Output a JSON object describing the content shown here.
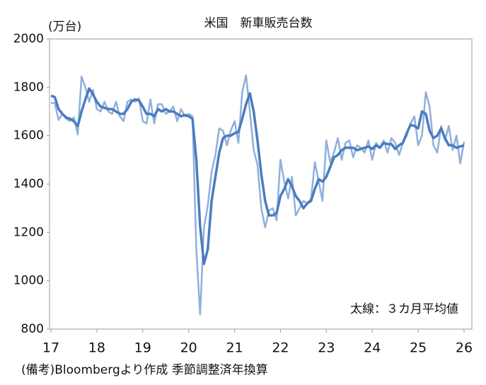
{
  "chart_data": {
    "type": "line",
    "title": "米国　新車販売台数",
    "y_label": "(万台)",
    "annotation": "太線：３カ月平均値",
    "note": "(備考)Bloombergより作成 季節調整済年換算",
    "categories": [
      "17",
      null,
      null,
      null,
      null,
      null,
      null,
      null,
      null,
      null,
      null,
      null,
      "18",
      null,
      null,
      null,
      null,
      null,
      null,
      null,
      null,
      null,
      null,
      null,
      "19",
      null,
      null,
      null,
      null,
      null,
      null,
      null,
      null,
      null,
      null,
      null,
      "20",
      null,
      null,
      null,
      null,
      null,
      null,
      null,
      null,
      null,
      null,
      null,
      "21",
      null,
      null,
      null,
      null,
      null,
      null,
      null,
      null,
      null,
      null,
      null,
      "22",
      null,
      null,
      null,
      null,
      null,
      null,
      null,
      null,
      null,
      null,
      null,
      "23",
      null,
      null,
      null,
      null,
      null,
      null,
      null,
      null,
      null,
      null,
      null,
      "24",
      null,
      null,
      null,
      null,
      null,
      null,
      null,
      null,
      null,
      null,
      null,
      "25",
      null,
      null,
      null,
      null,
      null,
      null,
      null,
      null,
      null,
      null,
      null,
      "26"
    ],
    "series": [
      {
        "color": "#8eb0da",
        "width": 2.5,
        "values": [
          1735,
          1735,
          1665,
          1690,
          1670,
          1660,
          1675,
          1605,
          1845,
          1800,
          1740,
          1790,
          1710,
          1700,
          1740,
          1700,
          1690,
          1740,
          1680,
          1660,
          1740,
          1750,
          1740,
          1755,
          1660,
          1650,
          1750,
          1650,
          1730,
          1730,
          1690,
          1700,
          1720,
          1660,
          1710,
          1680,
          1690,
          1680,
          1130,
          860,
          1220,
          1310,
          1450,
          1520,
          1630,
          1620,
          1560,
          1620,
          1660,
          1570,
          1780,
          1850,
          1700,
          1540,
          1480,
          1300,
          1220,
          1290,
          1300,
          1250,
          1500,
          1410,
          1340,
          1430,
          1270,
          1300,
          1330,
          1320,
          1340,
          1490,
          1410,
          1330,
          1580,
          1490,
          1530,
          1590,
          1500,
          1570,
          1580,
          1510,
          1560,
          1550,
          1530,
          1580,
          1500,
          1570,
          1550,
          1580,
          1530,
          1590,
          1570,
          1520,
          1570,
          1600,
          1650,
          1680,
          1560,
          1600,
          1780,
          1720,
          1560,
          1530,
          1640,
          1580,
          1640,
          1540,
          1600,
          1485,
          1575
        ]
      },
      {
        "color": "#4a7cc0",
        "width": 3.5,
        "values": [
          1765,
          1760,
          1710,
          1690,
          1675,
          1670,
          1660,
          1640,
          1700,
          1750,
          1795,
          1770,
          1740,
          1720,
          1715,
          1710,
          1710,
          1700,
          1690,
          1690,
          1710,
          1740,
          1750,
          1745,
          1720,
          1690,
          1690,
          1680,
          1710,
          1700,
          1710,
          1700,
          1700,
          1690,
          1680,
          1685,
          1680,
          1670,
          1500,
          1225,
          1070,
          1130,
          1330,
          1430,
          1530,
          1590,
          1600,
          1600,
          1610,
          1615,
          1670,
          1730,
          1775,
          1700,
          1580,
          1440,
          1330,
          1270,
          1270,
          1280,
          1350,
          1380,
          1420,
          1390,
          1350,
          1330,
          1300,
          1320,
          1330,
          1380,
          1420,
          1410,
          1430,
          1470,
          1510,
          1520,
          1540,
          1550,
          1550,
          1550,
          1540,
          1545,
          1550,
          1555,
          1545,
          1560,
          1550,
          1570,
          1565,
          1565,
          1545,
          1560,
          1570,
          1610,
          1645,
          1640,
          1630,
          1700,
          1690,
          1620,
          1590,
          1600,
          1630,
          1590,
          1560,
          1560,
          1550,
          1555,
          1560
        ]
      }
    ],
    "ylim": [
      800,
      2000
    ],
    "yticks": [
      800,
      1000,
      1200,
      1400,
      1600,
      1800,
      2000
    ],
    "grid": false
  }
}
